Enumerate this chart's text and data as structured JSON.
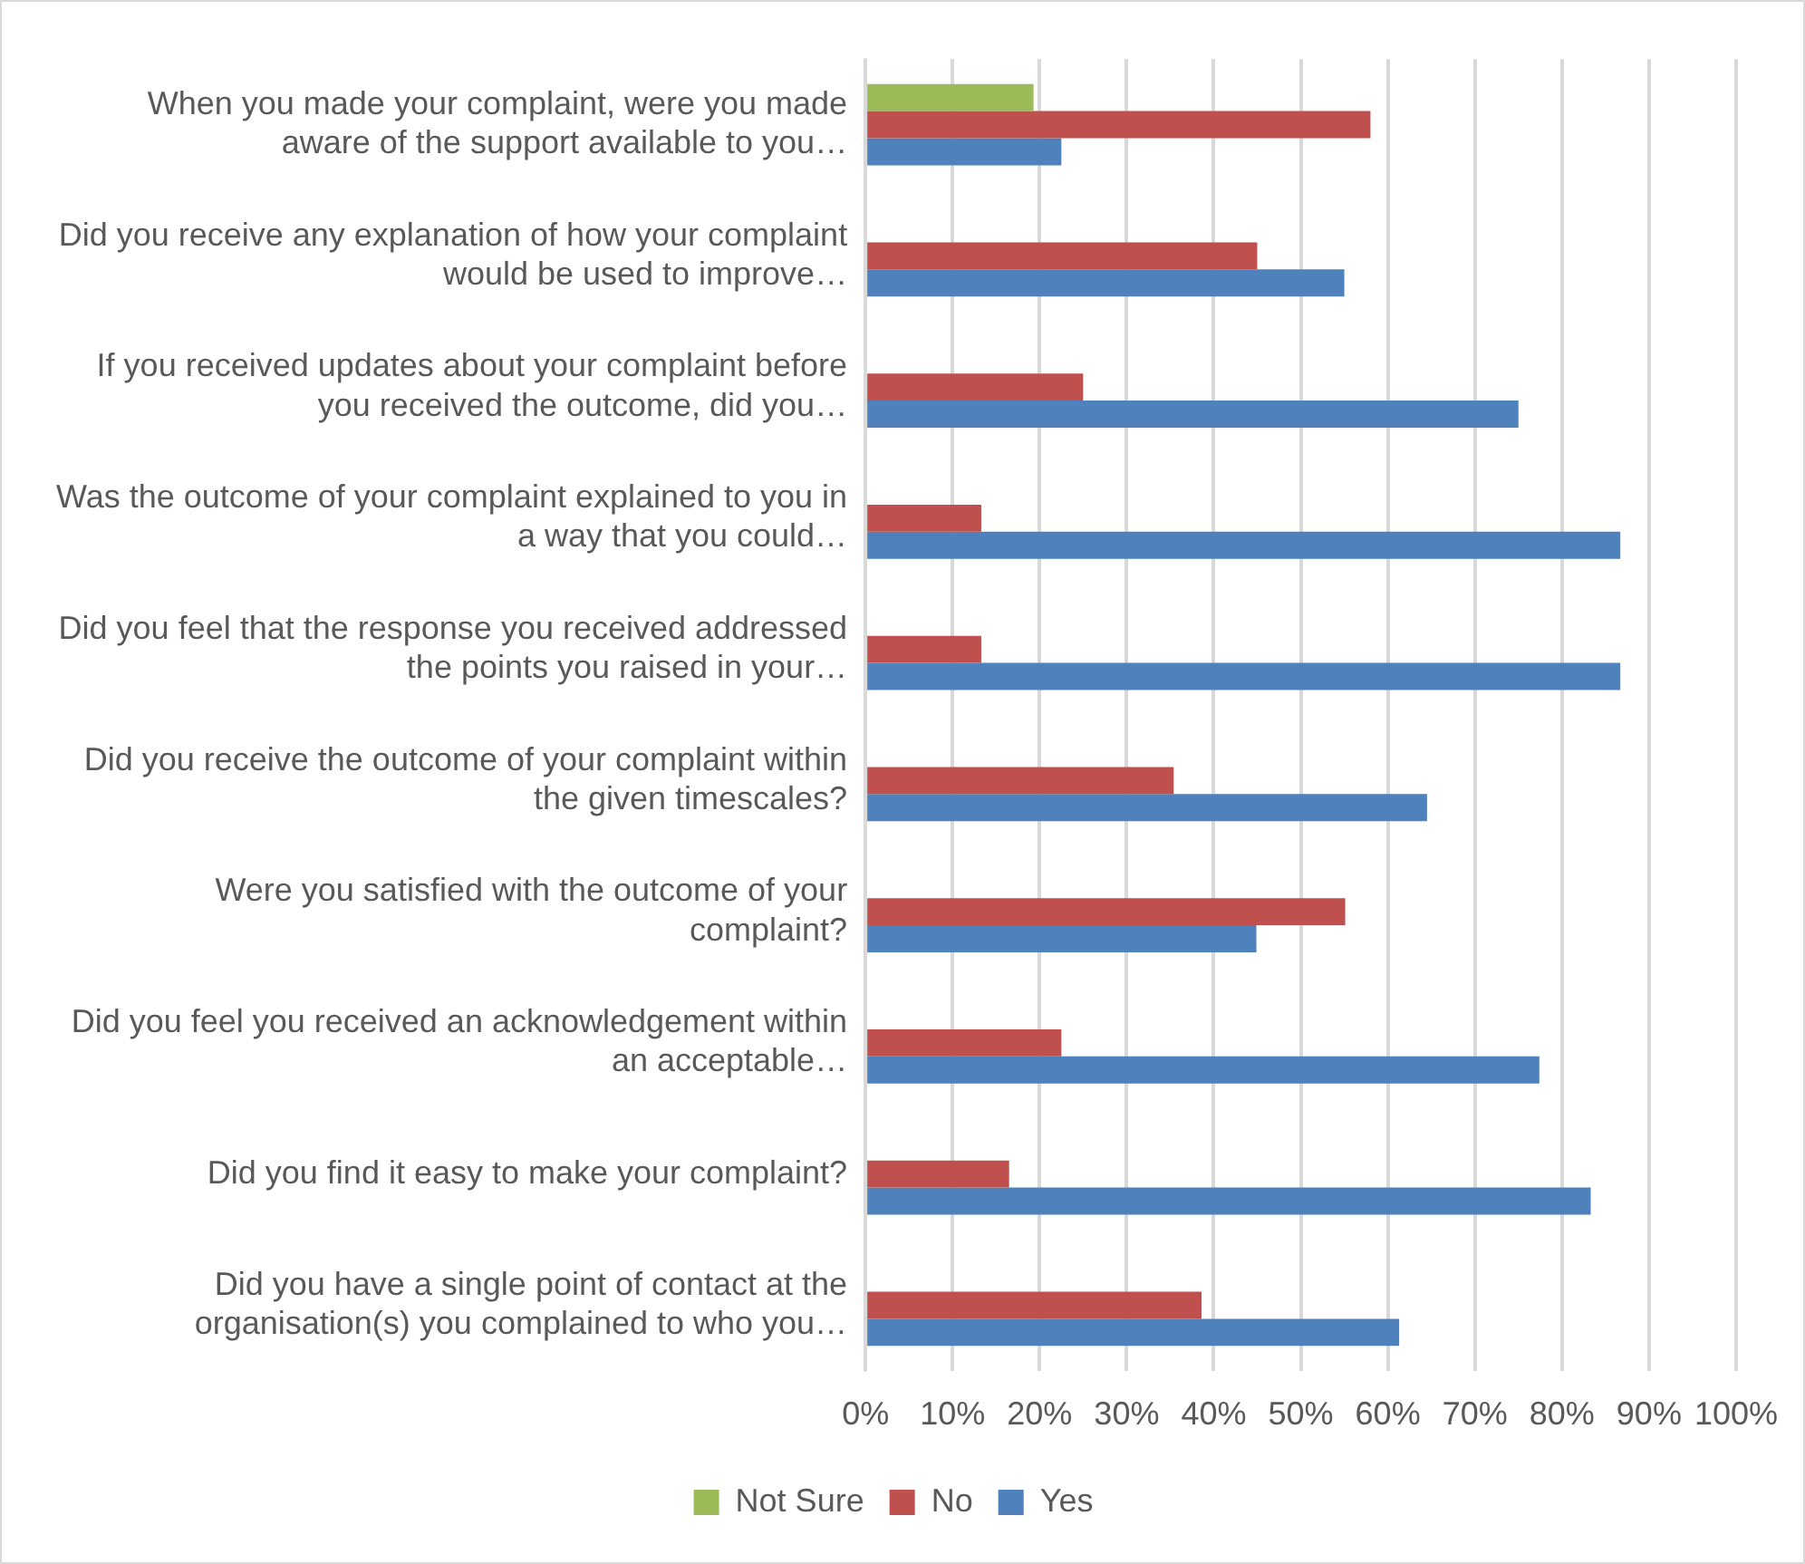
{
  "chart_data": {
    "type": "bar",
    "orientation": "horizontal",
    "categories": [
      "When you made your complaint, were you made aware of the support available to you…",
      "Did you receive any explanation of how your complaint would be used to improve…",
      "If you received updates about your complaint before you received the outcome, did you…",
      "Was the outcome of your complaint explained to you in a way that you could…",
      "Did you feel that the response you received addressed the points you raised in your…",
      "Did you receive the outcome of your complaint within the given timescales?",
      "Were you satisfied with the outcome of your complaint?",
      "Did you feel you received an acknowledgement within an acceptable…",
      "Did you find it easy to make your complaint?",
      "Did you have a single point of contact at the organisation(s) you complained to who you…"
    ],
    "series": [
      {
        "name": "Not Sure",
        "color": "#9bbb59",
        "values": [
          19.3,
          null,
          null,
          null,
          null,
          null,
          null,
          null,
          null,
          null
        ]
      },
      {
        "name": "No",
        "color": "#c0504d",
        "values": [
          58,
          45,
          25,
          13.3,
          13.3,
          35.4,
          55.1,
          22.5,
          16.5,
          38.6
        ]
      },
      {
        "name": "Yes",
        "color": "#4f81bd",
        "values": [
          22.5,
          55,
          75,
          86.7,
          86.7,
          64.5,
          44.9,
          77.4,
          83.3,
          61.3
        ]
      }
    ],
    "xlim": [
      0,
      100
    ],
    "xticks": [
      {
        "value": 0,
        "label": "0%"
      },
      {
        "value": 10,
        "label": "10%"
      },
      {
        "value": 20,
        "label": "20%"
      },
      {
        "value": 30,
        "label": "30%"
      },
      {
        "value": 40,
        "label": "40%"
      },
      {
        "value": 50,
        "label": "50%"
      },
      {
        "value": 60,
        "label": "60%"
      },
      {
        "value": 70,
        "label": "70%"
      },
      {
        "value": 80,
        "label": "80%"
      },
      {
        "value": 90,
        "label": "90%"
      },
      {
        "value": 100,
        "label": "100%"
      }
    ],
    "grid": "x",
    "legend": "bottom"
  }
}
